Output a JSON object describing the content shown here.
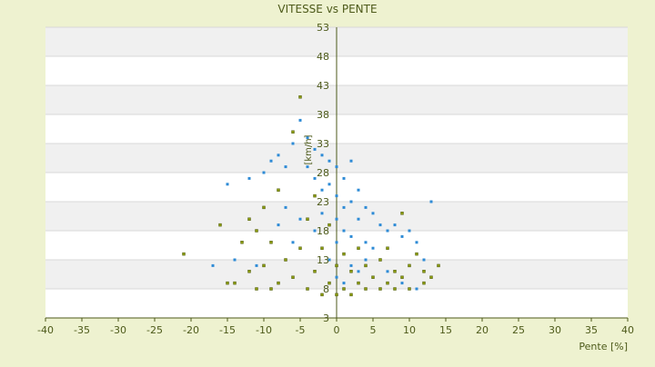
{
  "chart_data": {
    "type": "scatter",
    "title": "VITESSE vs PENTE",
    "xlabel": "Pente [%]",
    "ylabel": "[km/h]",
    "xlim": [
      -40,
      40
    ],
    "ylim": [
      3,
      53
    ],
    "x_ticks": [
      -40,
      -35,
      -30,
      -25,
      -20,
      -15,
      -10,
      -5,
      0,
      5,
      10,
      15,
      20,
      25,
      30,
      35,
      40
    ],
    "y_ticks": [
      3,
      8,
      13,
      18,
      23,
      28,
      33,
      38,
      43,
      48,
      53
    ],
    "grid": "horizontal-bands",
    "legend": "none",
    "colors": {
      "background": "#eef2d0",
      "plot_band_light": "#ffffff",
      "plot_band_dark": "#f0f0f0",
      "gridline": "#d8d8d8",
      "axis": "#4d5a1a",
      "text": "#4d5a1a",
      "series_a": "#2e8bd6",
      "series_b": "#8a9a10"
    },
    "series": [
      {
        "color": "#2e8bd6",
        "points": [
          [
            -15,
            26
          ],
          [
            -12,
            27
          ],
          [
            -10,
            28
          ],
          [
            -9,
            30
          ],
          [
            -8,
            31
          ],
          [
            -7,
            29
          ],
          [
            -6,
            33
          ],
          [
            -5,
            37
          ],
          [
            -4,
            34
          ],
          [
            -4,
            29
          ],
          [
            -3,
            32
          ],
          [
            -3,
            27
          ],
          [
            -2,
            31
          ],
          [
            -2,
            25
          ],
          [
            -1,
            30
          ],
          [
            -1,
            26
          ],
          [
            0,
            29
          ],
          [
            0,
            24
          ],
          [
            0,
            20
          ],
          [
            1,
            27
          ],
          [
            1,
            22
          ],
          [
            1,
            18
          ],
          [
            2,
            30
          ],
          [
            2,
            23
          ],
          [
            2,
            17
          ],
          [
            3,
            25
          ],
          [
            3,
            20
          ],
          [
            4,
            22
          ],
          [
            4,
            16
          ],
          [
            5,
            21
          ],
          [
            5,
            15
          ],
          [
            6,
            19
          ],
          [
            7,
            18
          ],
          [
            8,
            19
          ],
          [
            9,
            17
          ],
          [
            10,
            18
          ],
          [
            11,
            16
          ],
          [
            12,
            13
          ],
          [
            13,
            23
          ],
          [
            -17,
            12
          ],
          [
            -14,
            13
          ],
          [
            -11,
            12
          ],
          [
            -6,
            16
          ],
          [
            -5,
            20
          ],
          [
            -3,
            18
          ],
          [
            -1,
            13
          ],
          [
            0,
            10
          ],
          [
            1,
            9
          ],
          [
            2,
            12
          ],
          [
            3,
            11
          ],
          [
            5,
            10
          ],
          [
            7,
            11
          ],
          [
            9,
            9
          ],
          [
            11,
            8
          ],
          [
            -8,
            19
          ],
          [
            -7,
            22
          ],
          [
            -2,
            21
          ],
          [
            0,
            16
          ],
          [
            4,
            13
          ]
        ]
      },
      {
        "color": "#8a9a10",
        "points": [
          [
            -21,
            14
          ],
          [
            -16,
            19
          ],
          [
            -13,
            16
          ],
          [
            -12,
            20
          ],
          [
            -11,
            18
          ],
          [
            -10,
            22
          ],
          [
            -10,
            12
          ],
          [
            -9,
            16
          ],
          [
            -8,
            9
          ],
          [
            -8,
            25
          ],
          [
            -7,
            13
          ],
          [
            -6,
            10
          ],
          [
            -6,
            35
          ],
          [
            -5,
            41
          ],
          [
            -5,
            15
          ],
          [
            -4,
            8
          ],
          [
            -4,
            20
          ],
          [
            -3,
            11
          ],
          [
            -3,
            24
          ],
          [
            -2,
            7
          ],
          [
            -2,
            15
          ],
          [
            -1,
            9
          ],
          [
            -1,
            19
          ],
          [
            0,
            7
          ],
          [
            0,
            12
          ],
          [
            1,
            8
          ],
          [
            1,
            14
          ],
          [
            2,
            7
          ],
          [
            2,
            11
          ],
          [
            3,
            9
          ],
          [
            3,
            15
          ],
          [
            4,
            8
          ],
          [
            4,
            12
          ],
          [
            5,
            10
          ],
          [
            6,
            8
          ],
          [
            6,
            13
          ],
          [
            7,
            9
          ],
          [
            7,
            15
          ],
          [
            8,
            8
          ],
          [
            8,
            11
          ],
          [
            9,
            10
          ],
          [
            9,
            21
          ],
          [
            10,
            8
          ],
          [
            10,
            12
          ],
          [
            11,
            14
          ],
          [
            12,
            9
          ],
          [
            12,
            11
          ],
          [
            13,
            10
          ],
          [
            14,
            12
          ],
          [
            -15,
            9
          ],
          [
            -14,
            9
          ],
          [
            -11,
            8
          ],
          [
            -9,
            8
          ],
          [
            -12,
            11
          ]
        ]
      }
    ]
  }
}
